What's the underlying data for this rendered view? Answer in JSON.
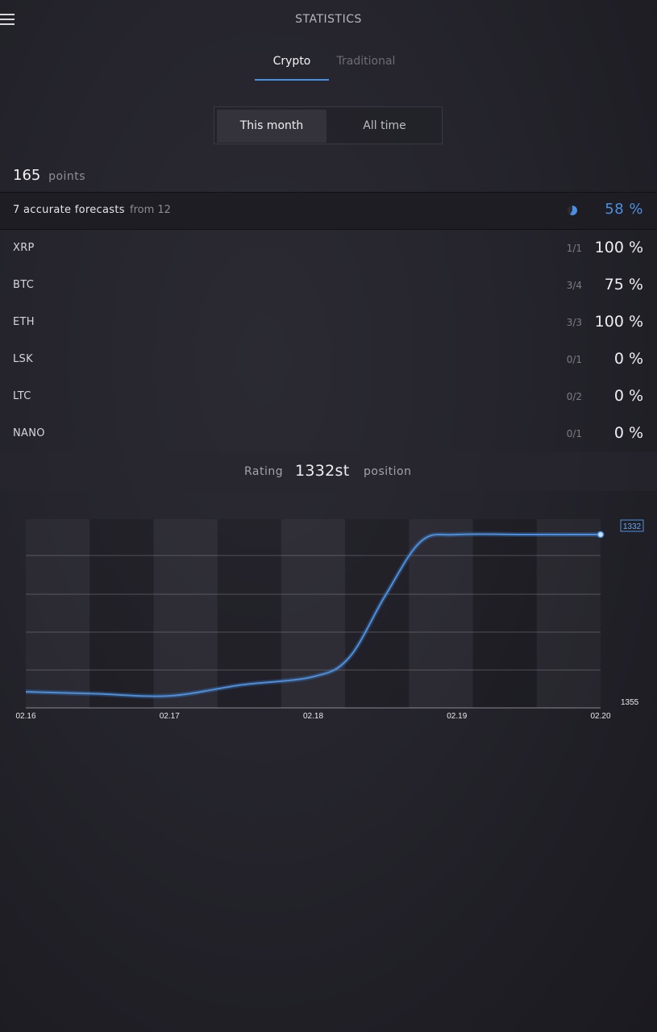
{
  "header": {
    "title": "STATISTICS",
    "menu_icon": "hamburger-icon"
  },
  "tabs": [
    {
      "label": "Crypto",
      "active": true
    },
    {
      "label": "Traditional",
      "active": false
    }
  ],
  "period": {
    "options": [
      "This month",
      "All time"
    ],
    "selected": "This month"
  },
  "points": {
    "value": "165",
    "label": "points"
  },
  "accuracy": {
    "text": "7 accurate forecasts",
    "from": "from 12",
    "percent": "58 %",
    "fraction": 0.58,
    "accent_color": "#4a90e2"
  },
  "coins": [
    {
      "name": "XRP",
      "ratio": "1/1",
      "percent": "100 %"
    },
    {
      "name": "BTC",
      "ratio": "3/4",
      "percent": "75 %"
    },
    {
      "name": "ETH",
      "ratio": "3/3",
      "percent": "100 %"
    },
    {
      "name": "LSK",
      "ratio": "0/1",
      "percent": "0 %"
    },
    {
      "name": "LTC",
      "ratio": "0/2",
      "percent": "0 %"
    },
    {
      "name": "NANO",
      "ratio": "0/1",
      "percent": "0 %"
    }
  ],
  "rating": {
    "label": "Rating",
    "value": "1332st",
    "suffix": "position"
  },
  "chart_data": {
    "type": "line",
    "x_labels": [
      "02.16",
      "02.17",
      "02.18",
      "02.19",
      "02.20"
    ],
    "series": [
      {
        "x": [
          0,
          0.5,
          1,
          1.5,
          2,
          2.25,
          2.5,
          2.75,
          3,
          3.5,
          4
        ],
        "values": [
          1355,
          1355.3,
          1355.6,
          1354,
          1352.8,
          1350,
          1341,
          1333,
          1332,
          1332,
          1332
        ]
      }
    ],
    "ylim": [
      1355,
      1332
    ],
    "y_labels": {
      "top": "1332",
      "bottom": "1355"
    },
    "line_color": "#4a90e2",
    "grid": true
  }
}
